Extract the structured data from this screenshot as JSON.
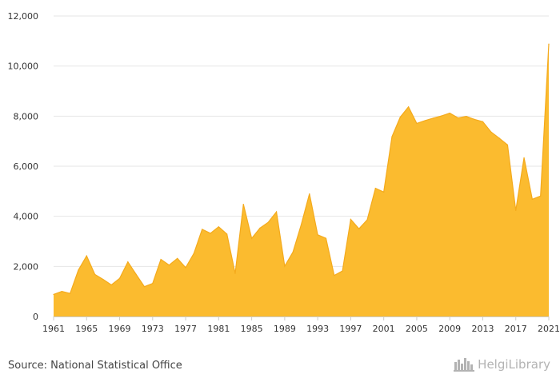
{
  "chart_data": {
    "type": "area",
    "title": "",
    "xlabel": "",
    "ylabel": "",
    "x": [
      1961,
      1962,
      1963,
      1964,
      1965,
      1966,
      1967,
      1968,
      1969,
      1970,
      1971,
      1972,
      1973,
      1974,
      1975,
      1976,
      1977,
      1978,
      1979,
      1980,
      1981,
      1982,
      1983,
      1984,
      1985,
      1986,
      1987,
      1988,
      1989,
      1990,
      1991,
      1992,
      1993,
      1994,
      1995,
      1996,
      1997,
      1998,
      1999,
      2000,
      2001,
      2002,
      2003,
      2004,
      2005,
      2006,
      2007,
      2008,
      2009,
      2010,
      2011,
      2012,
      2013,
      2014,
      2015,
      2016,
      2017,
      2018,
      2019,
      2020,
      2021
    ],
    "values": [
      880,
      1000,
      920,
      1850,
      2420,
      1680,
      1480,
      1260,
      1520,
      2180,
      1680,
      1190,
      1320,
      2280,
      2050,
      2320,
      1950,
      2520,
      3480,
      3320,
      3580,
      3290,
      1720,
      4480,
      3120,
      3530,
      3760,
      4180,
      2010,
      2570,
      3660,
      4900,
      3260,
      3120,
      1640,
      1820,
      3880,
      3500,
      3860,
      5120,
      4970,
      7180,
      7960,
      8370,
      7710,
      7820,
      7920,
      8010,
      8120,
      7930,
      7990,
      7870,
      7780,
      7370,
      7120,
      6850,
      4230,
      6340,
      4680,
      4810,
      10880
    ],
    "x_tick_labels": [
      "1961",
      "1965",
      "1969",
      "1973",
      "1977",
      "1981",
      "1985",
      "1989",
      "1993",
      "1997",
      "2001",
      "2005",
      "2009",
      "2013",
      "2017",
      "2021"
    ],
    "y_tick_labels": [
      "0",
      "2,000",
      "4,000",
      "6,000",
      "8,000",
      "10,000",
      "12,000"
    ],
    "y_ticks": [
      0,
      2000,
      4000,
      6000,
      8000,
      10000,
      12000
    ],
    "xlim": [
      1961,
      2021
    ],
    "ylim": [
      0,
      12000
    ],
    "grid": true,
    "legend": "none",
    "fill_color": "#fbbb2f",
    "stroke_color": "#f4aa1c",
    "grid_color": "#e6e6e6",
    "axis_color": "#cccccc"
  },
  "footer": {
    "source": "Source: National Statistical Office",
    "brand": "HelgiLibrary",
    "brand_icon": "helgi-library-logo-icon"
  }
}
